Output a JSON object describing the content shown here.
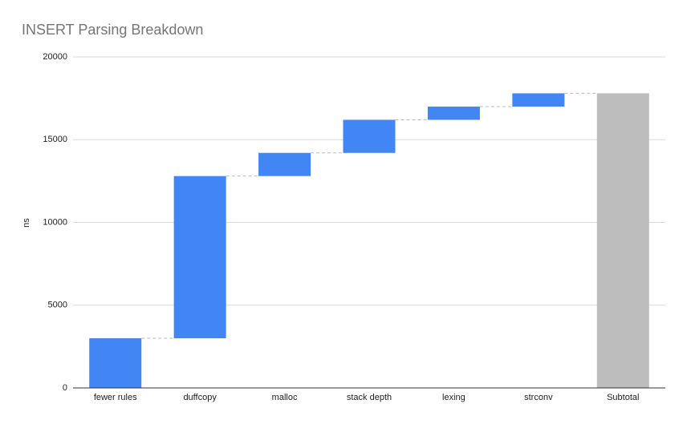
{
  "chart_data": {
    "type": "waterfall",
    "title": "INSERT Parsing Breakdown",
    "y_label": "ns",
    "categories": [
      "fewer rules",
      "duffcopy",
      "malloc",
      "stack depth",
      "lexing",
      "strconv"
    ],
    "values": [
      3000,
      9800,
      1400,
      2000,
      800,
      800
    ],
    "color": "#4285f4",
    "subtotal": {
      "label": "Subtotal",
      "value": 17800,
      "color": "#bdbdbd"
    },
    "ylim": [
      0,
      20000
    ],
    "yticks": [
      0,
      5000,
      10000,
      15000,
      20000
    ],
    "grid": true
  }
}
